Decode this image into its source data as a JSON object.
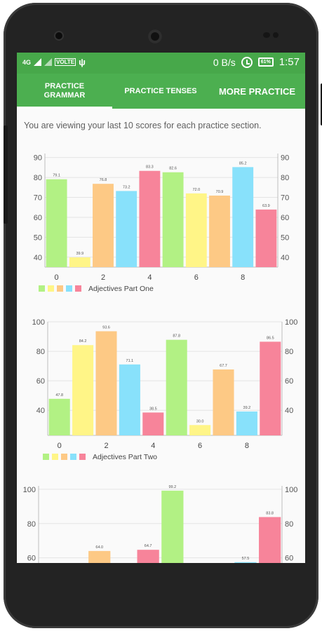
{
  "status_bar": {
    "network": "4G",
    "volte": "VOLTE",
    "speed": "0 B/s",
    "battery": "61%",
    "time": "1:57"
  },
  "tabs": [
    {
      "line1": "PRACTICE",
      "line2": "GRAMMAR"
    },
    {
      "label": "PRACTICE TENSES"
    },
    {
      "label": "MORE PRACTICE"
    }
  ],
  "info_text": "You are viewing your last 10 scores for each practice section.",
  "colors": {
    "green": "#b2f184",
    "yellow": "#fff587",
    "orange": "#fdc985",
    "blue": "#88e1fb",
    "pink": "#f7849a",
    "status_bar": "#47a84a",
    "tab_bar": "#4caf50"
  },
  "chart_data": [
    {
      "type": "bar",
      "legend": "Adjectives Part One",
      "x": [
        0,
        1,
        2,
        3,
        4,
        5,
        6,
        7,
        8,
        9
      ],
      "values": [
        79.1,
        39.9,
        76.8,
        73.2,
        83.3,
        82.6,
        72.0,
        70.9,
        85.2,
        63.9
      ],
      "labels": [
        "79.1",
        "39.9",
        "76.8",
        "73.2",
        "83.3",
        "82.6",
        "72.0",
        "70.9",
        "85.2",
        "63.9"
      ],
      "x_ticks": [
        "0",
        "2",
        "4",
        "6",
        "8"
      ],
      "y_ticks": [
        "40",
        "50",
        "60",
        "70",
        "80",
        "90"
      ],
      "ylim": [
        35,
        92
      ]
    },
    {
      "type": "bar",
      "legend": "Adjectives Part Two",
      "x": [
        0,
        1,
        2,
        3,
        4,
        5,
        6,
        7,
        8,
        9
      ],
      "values": [
        47.8,
        84.2,
        93.6,
        71.1,
        38.5,
        87.8,
        30.0,
        67.7,
        39.2,
        86.5
      ],
      "labels": [
        "47.8",
        "84.2",
        "93.6",
        "71.1",
        "38.5",
        "87.8",
        "30.0",
        "67.7",
        "39.2",
        "86.5"
      ],
      "x_ticks": [
        "0",
        "2",
        "4",
        "6",
        "8"
      ],
      "y_ticks": [
        "40",
        "60",
        "80",
        "100"
      ],
      "ylim": [
        23,
        100
      ]
    },
    {
      "type": "bar",
      "legend": "",
      "x": [
        0,
        1,
        2,
        3,
        4,
        5,
        6,
        7,
        8,
        9
      ],
      "values": [
        null,
        null,
        64.0,
        null,
        64.7,
        99.2,
        null,
        null,
        57.5,
        83.8
      ],
      "labels": [
        "",
        "",
        "64.0",
        "",
        "64.7",
        "99.2",
        "",
        "",
        "57.5",
        "83.8"
      ],
      "y_ticks": [
        "60",
        "80",
        "100"
      ],
      "ylim": [
        57,
        102
      ]
    }
  ]
}
